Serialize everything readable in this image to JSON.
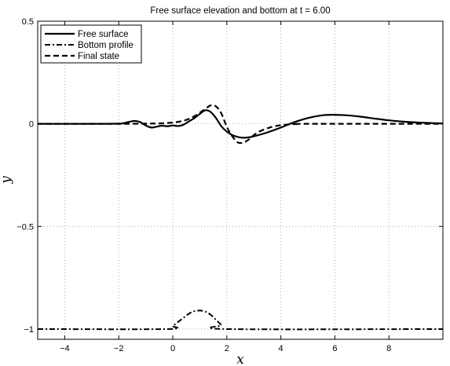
{
  "chart_data": {
    "type": "line",
    "title": "Free surface elevation and bottom at t = 6.00",
    "xlabel": "x",
    "ylabel": "y",
    "xlim": [
      -5,
      10
    ],
    "ylim": [
      -1.05,
      0.5
    ],
    "x_ticks": [
      -4,
      -2,
      0,
      2,
      4,
      6,
      8
    ],
    "y_ticks": [
      0.5,
      0,
      -0.5,
      -1
    ],
    "x_tick_labels": [
      "−4",
      "−2",
      "0",
      "2",
      "4",
      "6",
      "8"
    ],
    "y_tick_labels": [
      "0.5",
      "0",
      "−0.5",
      "−1"
    ],
    "grid": true,
    "legend_position": "top-left",
    "series": [
      {
        "name": "Free surface",
        "style": "solid",
        "color": "#000000",
        "x": [
          -5,
          -3,
          -2,
          -1.8,
          -1.6,
          -1.4,
          -1.2,
          -1.0,
          -0.8,
          -0.6,
          -0.4,
          -0.2,
          0.0,
          0.2,
          0.4,
          0.6,
          0.8,
          1.0,
          1.2,
          1.4,
          1.6,
          1.8,
          2.0,
          2.2,
          2.4,
          2.6,
          2.8,
          3.0,
          3.5,
          4.0,
          4.5,
          5.0,
          5.5,
          5.9,
          6.5,
          7.0,
          7.5,
          8.0,
          8.5,
          9.0,
          9.5,
          10.0
        ],
        "y": [
          0,
          0,
          0.001,
          0.004,
          0.01,
          0.014,
          0.008,
          -0.008,
          -0.018,
          -0.014,
          -0.009,
          -0.012,
          -0.008,
          -0.011,
          -0.004,
          0.012,
          0.028,
          0.048,
          0.066,
          0.058,
          0.028,
          -0.012,
          -0.038,
          -0.055,
          -0.064,
          -0.068,
          -0.066,
          -0.061,
          -0.042,
          -0.018,
          0.008,
          0.028,
          0.041,
          0.044,
          0.041,
          0.034,
          0.025,
          0.017,
          0.011,
          0.007,
          0.004,
          0.002
        ]
      },
      {
        "name": "Bottom profile",
        "style": "dashdot",
        "color": "#000000",
        "x": [
          -5,
          -0.2,
          0.0,
          0.2,
          0.4,
          0.6,
          0.8,
          1.0,
          1.2,
          1.4,
          1.6,
          1.8,
          2.0,
          10.0
        ],
        "y": [
          -1,
          -1,
          -0.985,
          -0.965,
          -0.945,
          -0.925,
          -0.913,
          -0.91,
          -0.915,
          -0.93,
          -0.955,
          -0.98,
          -1,
          -1
        ]
      },
      {
        "name": "Final state",
        "style": "dashed",
        "color": "#000000",
        "x": [
          -5,
          -2,
          -1,
          -0.5,
          0.0,
          0.3,
          0.6,
          0.9,
          1.2,
          1.4,
          1.6,
          1.8,
          2.0,
          2.2,
          2.4,
          2.6,
          2.8,
          3.0,
          3.2,
          3.5,
          3.8,
          4.2,
          4.6,
          5.0,
          10.0
        ],
        "y": [
          0,
          0,
          0.001,
          0.002,
          0.006,
          0.012,
          0.024,
          0.045,
          0.072,
          0.09,
          0.085,
          0.05,
          -0.015,
          -0.06,
          -0.09,
          -0.092,
          -0.078,
          -0.055,
          -0.038,
          -0.022,
          -0.011,
          -0.004,
          -0.001,
          0,
          0
        ]
      }
    ]
  }
}
